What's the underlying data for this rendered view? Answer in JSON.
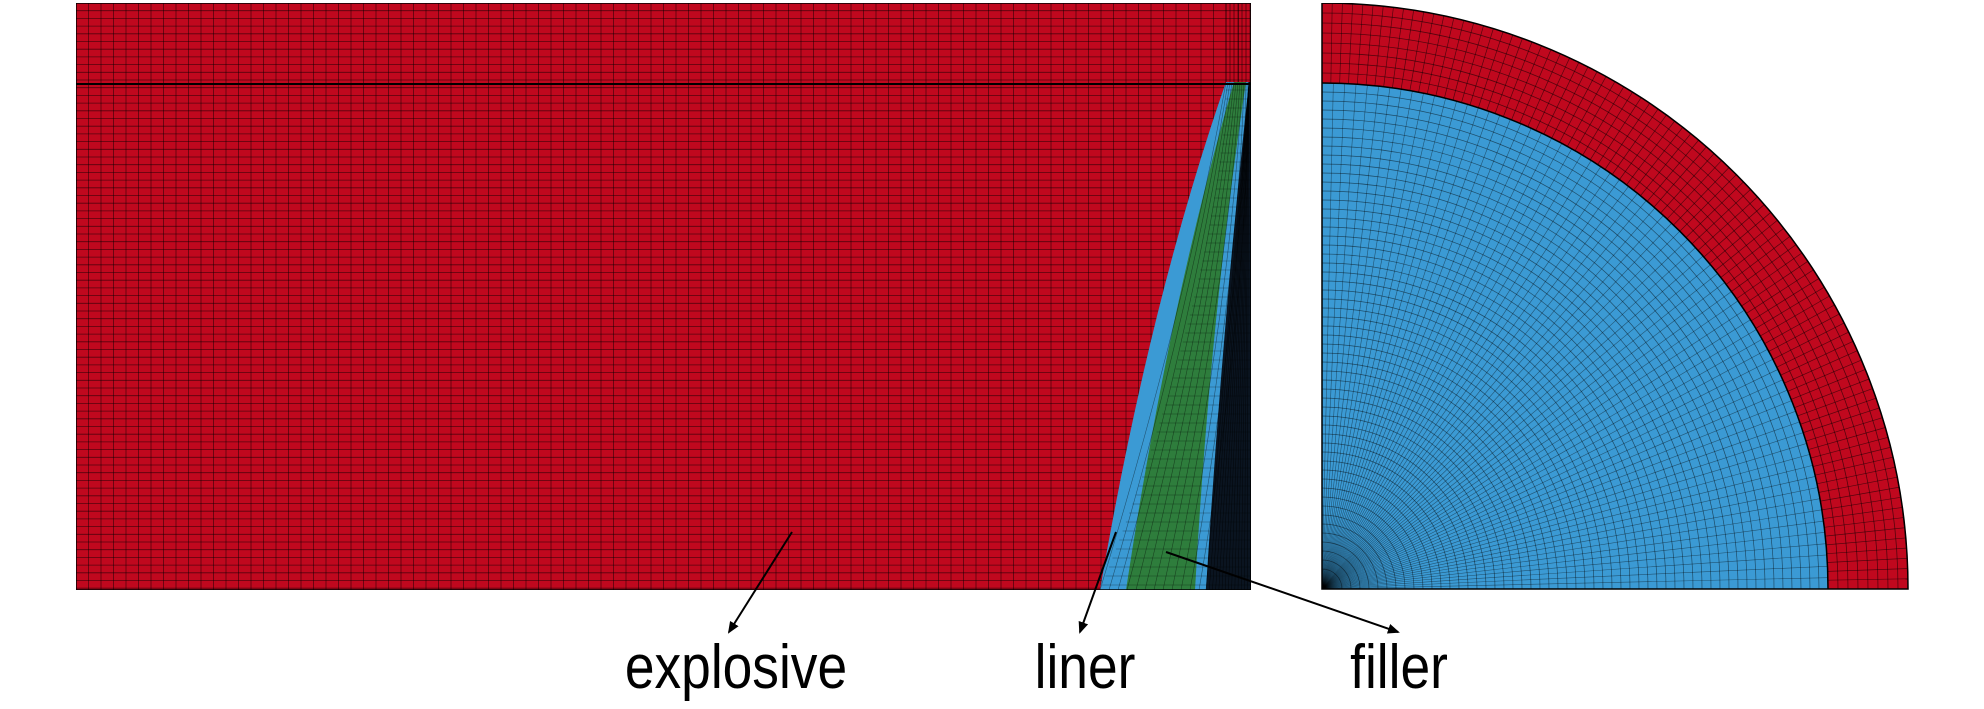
{
  "colors": {
    "explosive": "#c0081e",
    "liner": "#3b9ad4",
    "filler": "#2e7d3c",
    "mesh_line": "#000000",
    "background": "#ffffff"
  },
  "labels": {
    "explosive": "explosive",
    "liner": "liner",
    "filler": "filler"
  }
}
